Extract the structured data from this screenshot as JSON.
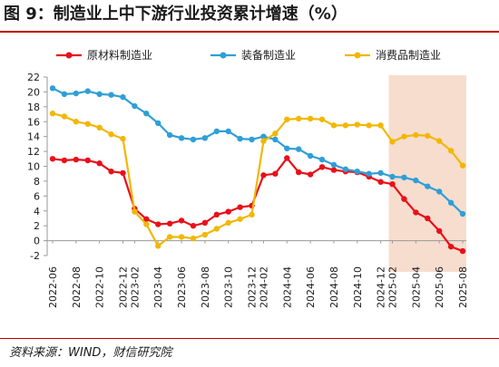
{
  "figure": {
    "title": "图 9：制造业上中下游行业投资累计增速（%）",
    "source": "资料来源：WIND，财信研究院"
  },
  "chart_data": {
    "type": "line",
    "title": "",
    "xlabel": "",
    "ylabel": "",
    "ylim": [
      -2,
      22
    ],
    "yticks": [
      -2,
      0,
      2,
      4,
      6,
      8,
      10,
      12,
      14,
      16,
      18,
      20,
      22
    ],
    "grid": false,
    "legend_position": "top",
    "x": [
      "2022-06",
      "2022-07",
      "2022-08",
      "2022-09",
      "2022-10",
      "2022-11",
      "2022-12",
      "2023-02",
      "2023-03",
      "2023-04",
      "2023-05",
      "2023-06",
      "2023-07",
      "2023-08",
      "2023-09",
      "2023-10",
      "2023-11",
      "2023-12",
      "2024-02",
      "2024-03",
      "2024-04",
      "2024-05",
      "2024-06",
      "2024-07",
      "2024-08",
      "2024-09",
      "2024-10",
      "2024-11",
      "2024-12",
      "2025-02",
      "2025-03",
      "2025-04",
      "2025-05",
      "2025-06",
      "2025-07",
      "2025-08"
    ],
    "x_tick_labels": [
      "2022-06",
      "2022-08",
      "2022-10",
      "2022-12",
      "2023-02",
      "2023-04",
      "2023-06",
      "2023-08",
      "2023-10",
      "2023-12",
      "2024-02",
      "2024-04",
      "2024-06",
      "2024-08",
      "2024-10",
      "2024-12",
      "2025-02",
      "2025-04",
      "2025-06",
      "2025-08"
    ],
    "highlight": {
      "from": "2025-02",
      "to": "2025-08",
      "color": "#f6d7c6"
    },
    "series": [
      {
        "name": "原材料制造业",
        "color": "#e8101a",
        "values": [
          11.0,
          10.8,
          10.9,
          10.8,
          10.4,
          9.3,
          9.1,
          4.3,
          2.9,
          2.2,
          2.3,
          2.7,
          2.0,
          2.4,
          3.5,
          3.9,
          4.5,
          4.7,
          8.8,
          9.0,
          11.1,
          9.2,
          8.9,
          9.9,
          9.5,
          9.3,
          9.2,
          8.6,
          7.9,
          7.6,
          5.6,
          3.8,
          3.0,
          1.3,
          -0.8,
          -1.4
        ]
      },
      {
        "name": "装备制造业",
        "color": "#2f9fd6",
        "values": [
          20.5,
          19.7,
          19.8,
          20.1,
          19.7,
          19.6,
          19.3,
          18.1,
          17.1,
          15.8,
          14.2,
          13.8,
          13.6,
          13.8,
          14.7,
          14.7,
          13.7,
          13.6,
          14.0,
          13.6,
          12.4,
          12.3,
          11.4,
          10.9,
          10.2,
          9.6,
          9.3,
          9.0,
          9.1,
          8.6,
          8.5,
          8.1,
          7.3,
          6.6,
          5.1,
          3.6
        ]
      },
      {
        "name": "消费品制造业",
        "color": "#f2b705",
        "values": [
          17.1,
          16.7,
          16.0,
          15.7,
          15.2,
          14.3,
          13.7,
          3.9,
          2.2,
          -0.7,
          0.5,
          0.5,
          0.3,
          0.8,
          1.6,
          2.4,
          2.9,
          3.5,
          13.4,
          14.4,
          16.3,
          16.4,
          16.4,
          16.3,
          15.5,
          15.5,
          15.6,
          15.5,
          15.5,
          13.3,
          14.0,
          14.2,
          14.1,
          13.4,
          12.1,
          10.1
        ]
      }
    ]
  }
}
